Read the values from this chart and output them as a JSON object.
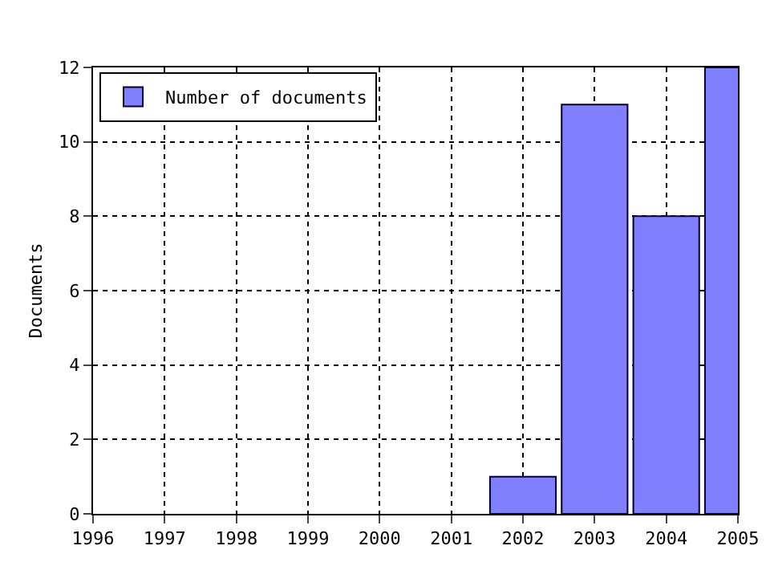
{
  "chart_data": {
    "type": "bar",
    "ylabel": "Documents",
    "x": [
      2002,
      2003,
      2004,
      2005
    ],
    "series": [
      {
        "name": "Number of documents",
        "color": "#8080ff",
        "values": [
          1,
          11,
          8,
          12
        ]
      }
    ],
    "xlim": [
      1996,
      2005
    ],
    "xticks": [
      1996,
      1997,
      1998,
      1999,
      2000,
      2001,
      2002,
      2003,
      2004,
      2005
    ],
    "ylim": [
      0,
      12
    ],
    "yticks": [
      0,
      2,
      4,
      6,
      8,
      10,
      12
    ],
    "grid": true,
    "legend": "top left"
  }
}
